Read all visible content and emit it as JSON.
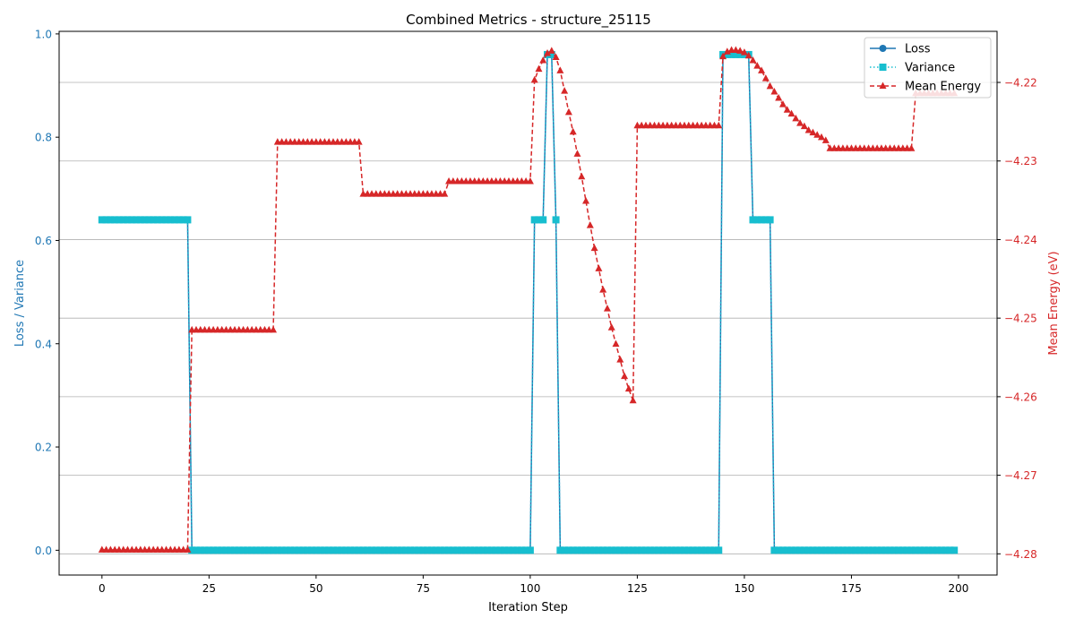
{
  "chart_data": {
    "type": "line",
    "title": "Combined Metrics - structure_25115",
    "xlabel": "Iteration Step",
    "ylabel_left": "Loss / Variance",
    "ylabel_right": "Mean Energy (eV)",
    "xlim": [
      -10,
      209
    ],
    "ylim_left": [
      -0.048,
      1.005
    ],
    "ylim_right": [
      -4.2827,
      -4.2135
    ],
    "x_ticks": [
      0,
      25,
      50,
      75,
      100,
      125,
      150,
      175,
      200
    ],
    "y_left_ticks": [
      0.0,
      0.2,
      0.4,
      0.6,
      0.8,
      1.0
    ],
    "y_right_ticks": [
      -4.28,
      -4.27,
      -4.26,
      -4.25,
      -4.24,
      -4.23,
      -4.22
    ],
    "grid": "right-axis horizontal",
    "legend_position": "top-right",
    "colors": {
      "left_axis": "#1f77b4",
      "right_axis": "#d62728",
      "loss": "#1f77b4",
      "variance": "#17becf",
      "mean_energy": "#d62728",
      "grid": "#b0b0b0"
    },
    "loss_variance_segments": [
      {
        "x_start": 0,
        "x_end": 20,
        "value": 0.64
      },
      {
        "x_start": 21,
        "x_end": 100,
        "value": 0.0
      },
      {
        "x_start": 101,
        "x_end": 103,
        "value": 0.64
      },
      {
        "x_start": 104,
        "x_end": 105,
        "value": 0.96
      },
      {
        "x_start": 106,
        "x_end": 106,
        "value": 0.64
      },
      {
        "x_start": 107,
        "x_end": 144,
        "value": 0.0
      },
      {
        "x_start": 145,
        "x_end": 151,
        "value": 0.96
      },
      {
        "x_start": 152,
        "x_end": 156,
        "value": 0.64
      },
      {
        "x_start": 157,
        "x_end": 199,
        "value": 0.0
      }
    ],
    "energy_segments": [
      {
        "x_start": 0,
        "x_end": 20,
        "value": -4.2795
      },
      {
        "x_start": 21,
        "x_end": 40,
        "value": -4.2515
      },
      {
        "x_start": 41,
        "x_end": 60,
        "value": -4.2276
      },
      {
        "x_start": 61,
        "x_end": 80,
        "value": -4.2342
      },
      {
        "x_start": 81,
        "x_end": 100,
        "value": -4.2326
      },
      {
        "x_start": 125,
        "x_end": 144,
        "value": -4.2255
      },
      {
        "x_start": 170,
        "x_end": 189,
        "value": -4.2284
      },
      {
        "x_start": 190,
        "x_end": 199,
        "value": -4.2214
      }
    ],
    "energy_points": [
      {
        "x": 101,
        "y": -4.2197
      },
      {
        "x": 102,
        "y": -4.2183
      },
      {
        "x": 103,
        "y": -4.2172
      },
      {
        "x": 104,
        "y": -4.2163
      },
      {
        "x": 105,
        "y": -4.216
      },
      {
        "x": 106,
        "y": -4.2168
      },
      {
        "x": 107,
        "y": -4.2185
      },
      {
        "x": 108,
        "y": -4.2211
      },
      {
        "x": 109,
        "y": -4.2238
      },
      {
        "x": 110,
        "y": -4.2263
      },
      {
        "x": 111,
        "y": -4.2291
      },
      {
        "x": 112,
        "y": -4.232
      },
      {
        "x": 113,
        "y": -4.2351
      },
      {
        "x": 114,
        "y": -4.2382
      },
      {
        "x": 115,
        "y": -4.2411
      },
      {
        "x": 116,
        "y": -4.2437
      },
      {
        "x": 117,
        "y": -4.2464
      },
      {
        "x": 118,
        "y": -4.2488
      },
      {
        "x": 119,
        "y": -4.2512
      },
      {
        "x": 120,
        "y": -4.2533
      },
      {
        "x": 121,
        "y": -4.2553
      },
      {
        "x": 122,
        "y": -4.2574
      },
      {
        "x": 123,
        "y": -4.259
      },
      {
        "x": 124,
        "y": -4.2605
      },
      {
        "x": 145,
        "y": -4.2167
      },
      {
        "x": 146,
        "y": -4.2161
      },
      {
        "x": 147,
        "y": -4.2159
      },
      {
        "x": 148,
        "y": -4.2159
      },
      {
        "x": 149,
        "y": -4.216
      },
      {
        "x": 150,
        "y": -4.2162
      },
      {
        "x": 151,
        "y": -4.2166
      },
      {
        "x": 152,
        "y": -4.2172
      },
      {
        "x": 153,
        "y": -4.2179
      },
      {
        "x": 154,
        "y": -4.2185
      },
      {
        "x": 155,
        "y": -4.2195
      },
      {
        "x": 156,
        "y": -4.2205
      },
      {
        "x": 157,
        "y": -4.2212
      },
      {
        "x": 158,
        "y": -4.222
      },
      {
        "x": 159,
        "y": -4.2228
      },
      {
        "x": 160,
        "y": -4.2235
      },
      {
        "x": 161,
        "y": -4.224
      },
      {
        "x": 162,
        "y": -4.2246
      },
      {
        "x": 163,
        "y": -4.2252
      },
      {
        "x": 164,
        "y": -4.2256
      },
      {
        "x": 165,
        "y": -4.2261
      },
      {
        "x": 166,
        "y": -4.2264
      },
      {
        "x": 167,
        "y": -4.2267
      },
      {
        "x": 168,
        "y": -4.227
      },
      {
        "x": 169,
        "y": -4.2274
      }
    ],
    "series": [
      {
        "name": "Loss",
        "axis": "left",
        "marker": "circle",
        "linestyle": "solid",
        "color": "#1f77b4"
      },
      {
        "name": "Variance",
        "axis": "left",
        "marker": "square",
        "linestyle": "dotted",
        "color": "#17becf"
      },
      {
        "name": "Mean Energy",
        "axis": "right",
        "marker": "triangle",
        "linestyle": "dashed",
        "color": "#d62728"
      }
    ]
  }
}
